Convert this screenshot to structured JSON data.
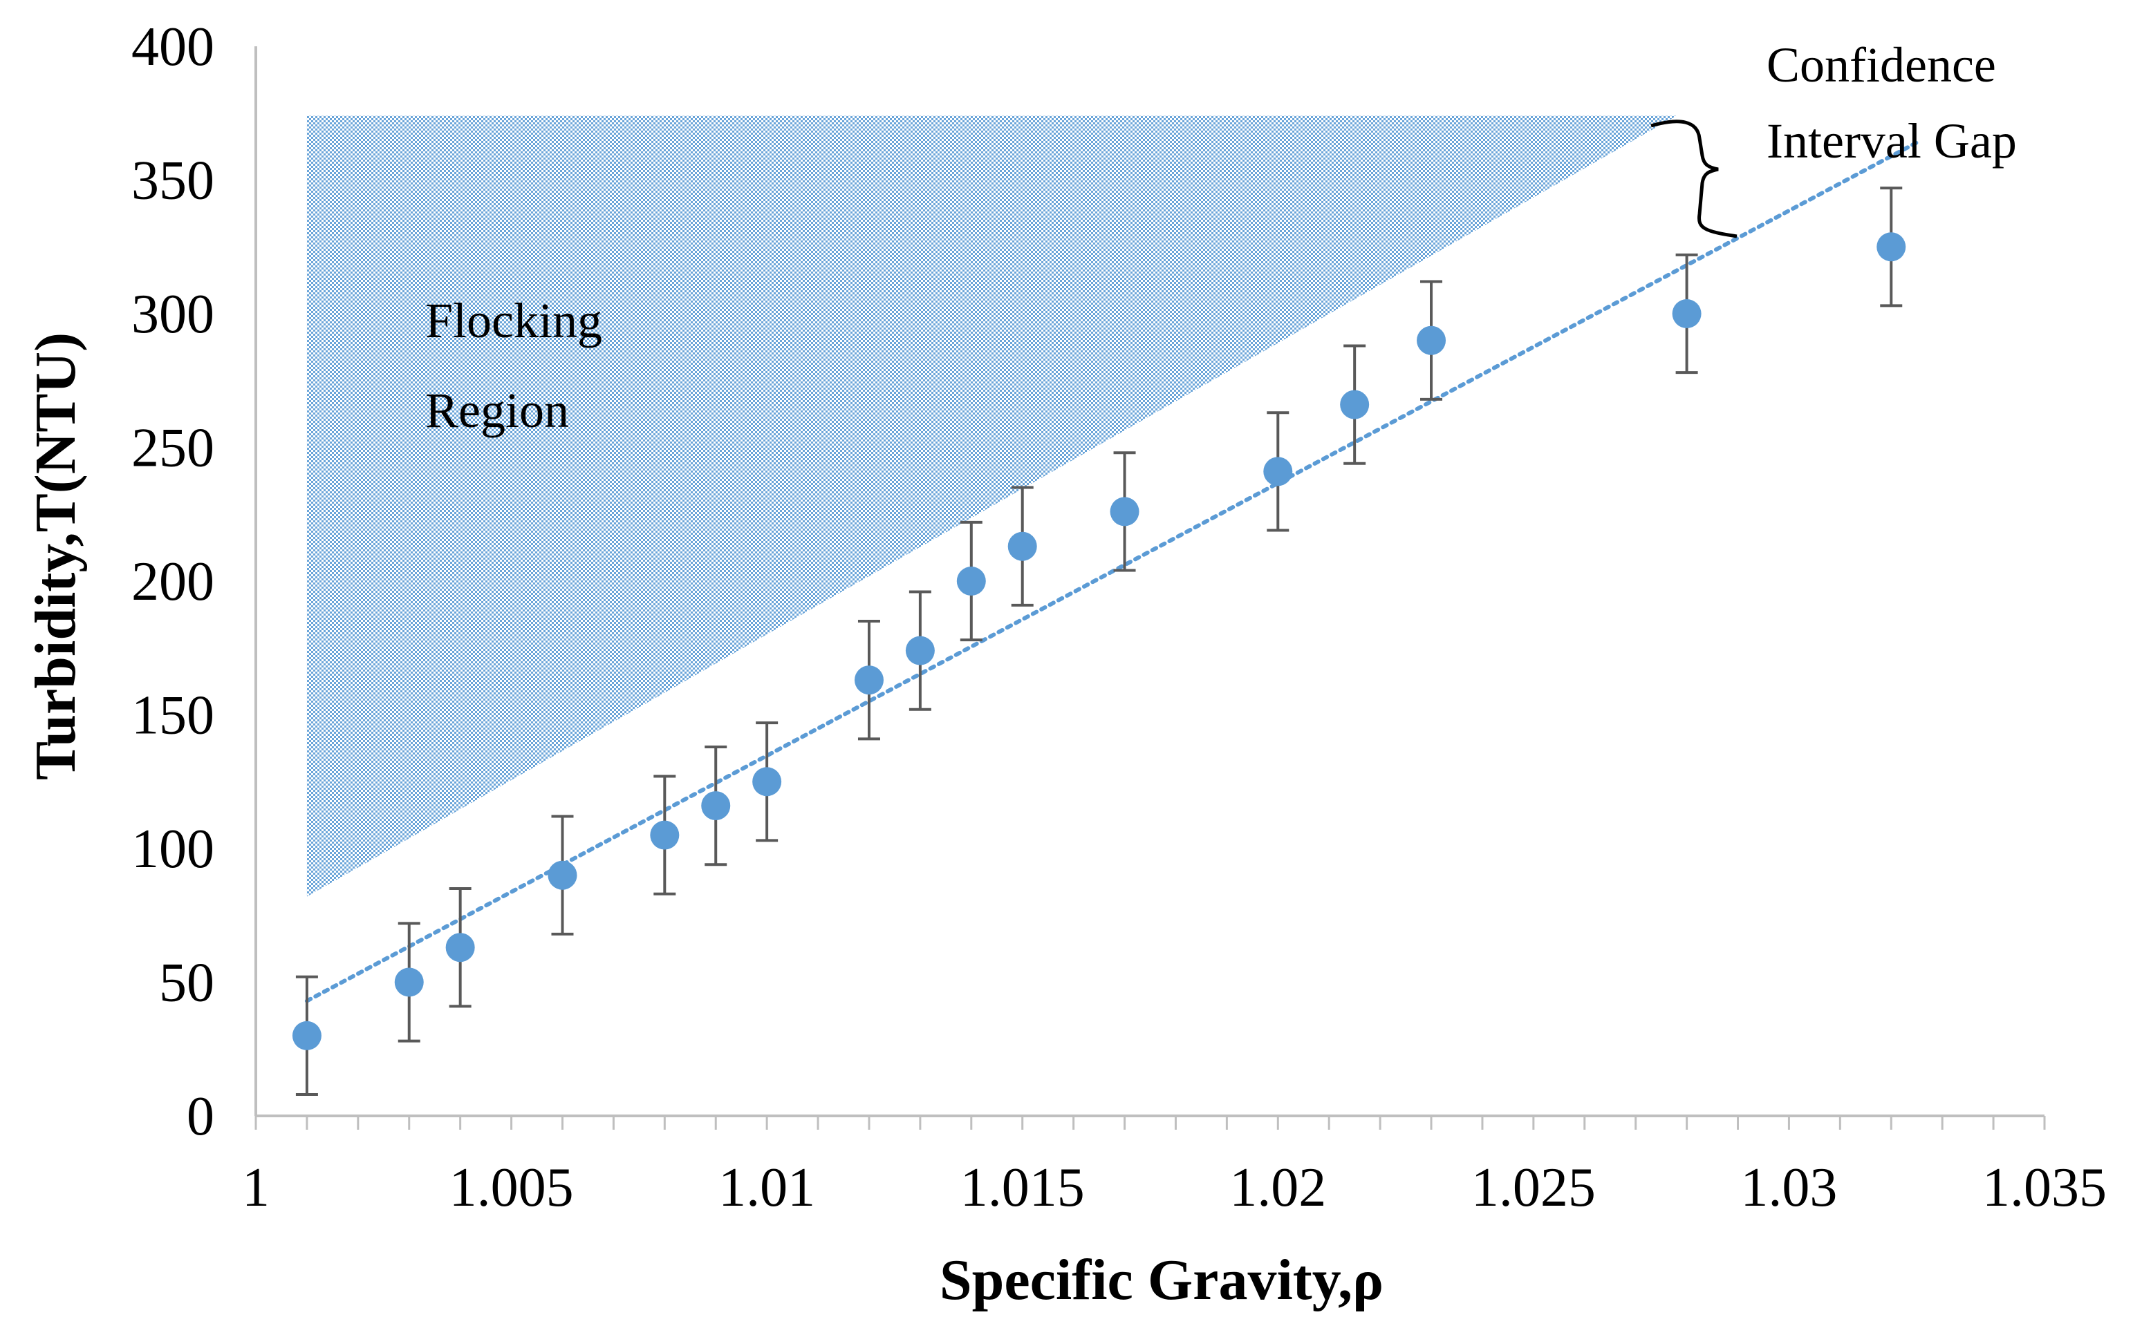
{
  "chart_data": {
    "type": "scatter",
    "title": "",
    "xlabel": "Specific Gravity,ρ",
    "ylabel": "Turbidity,T(NTU)",
    "xlim": [
      1.0,
      1.035
    ],
    "ylim": [
      0,
      400
    ],
    "x_ticks": [
      1.0,
      1.005,
      1.01,
      1.015,
      1.02,
      1.025,
      1.03,
      1.035
    ],
    "x_tick_labels": [
      "1",
      "1.005",
      "1.01",
      "1.015",
      "1.02",
      "1.025",
      "1.03",
      "1.035"
    ],
    "y_ticks": [
      0,
      50,
      100,
      150,
      200,
      250,
      300,
      350,
      400
    ],
    "y_tick_labels": [
      "0",
      "50",
      "100",
      "150",
      "200",
      "250",
      "300",
      "350",
      "400"
    ],
    "x_minor_step": 0.001,
    "grid": false,
    "series": [
      {
        "name": "Turbidity",
        "color": "#5B9BD5",
        "x": [
          1.001,
          1.003,
          1.004,
          1.006,
          1.008,
          1.009,
          1.01,
          1.012,
          1.013,
          1.014,
          1.015,
          1.017,
          1.02,
          1.0215,
          1.023,
          1.028,
          1.032
        ],
        "y": [
          30,
          50,
          63,
          90,
          105,
          116,
          125,
          163,
          174,
          200,
          213,
          226,
          241,
          266,
          290,
          300,
          325
        ],
        "error": 22
      }
    ],
    "trendline": {
      "type": "linear",
      "style": "dotted",
      "color": "#5B9BD5",
      "x": [
        1.001,
        1.0325
      ],
      "y": [
        43,
        364
      ]
    },
    "shaded_region": {
      "color": "#5B9BD5",
      "polygon": [
        [
          1.001,
          82
        ],
        [
          1.001,
          374
        ],
        [
          1.0278,
          374
        ]
      ]
    },
    "annotations": {
      "flocking_line1": "Flocking",
      "flocking_line2": "Region",
      "confidence_line1": "Confidence",
      "confidence_line2": "Interval Gap"
    }
  }
}
